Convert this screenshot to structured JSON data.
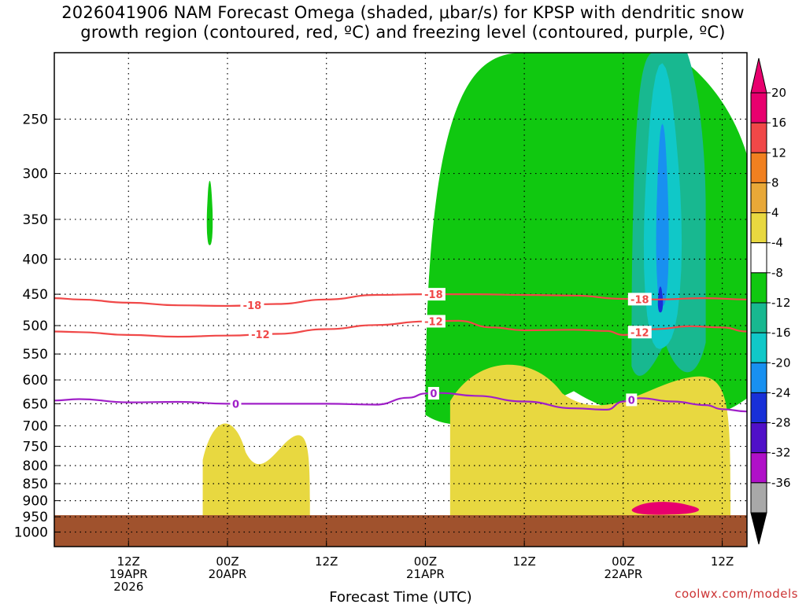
{
  "title": {
    "line1": "2026041906 NAM Forecast Omega (shaded, μbar/s) for KPSP with dendritic snow",
    "line2": "growth region (contoured, red, ºC) and freezing level (contoured, purple, ºC)"
  },
  "credit": "coolwx.com/models",
  "chart_data": {
    "type": "time-pressure cross section",
    "xlabel": "Forecast Time (UTC)",
    "ylabel": "",
    "x_units": "forecast hour",
    "xlim": [
      -3,
      81
    ],
    "ylim_pressure": [
      1050,
      200
    ],
    "y_ticks": [
      250,
      300,
      350,
      400,
      450,
      500,
      550,
      600,
      650,
      700,
      750,
      800,
      850,
      900,
      950,
      1000
    ],
    "x_ticks": [
      {
        "hour": 6,
        "l1": "12Z",
        "l2": "19APR",
        "l3": "2026"
      },
      {
        "hour": 18,
        "l1": "00Z",
        "l2": "20APR",
        "l3": ""
      },
      {
        "hour": 30,
        "l1": "12Z",
        "l2": "",
        "l3": ""
      },
      {
        "hour": 42,
        "l1": "00Z",
        "l2": "21APR",
        "l3": ""
      },
      {
        "hour": 54,
        "l1": "12Z",
        "l2": "",
        "l3": ""
      },
      {
        "hour": 66,
        "l1": "00Z",
        "l2": "22APR",
        "l3": ""
      },
      {
        "hour": 78,
        "l1": "12Z",
        "l2": "",
        "l3": ""
      }
    ],
    "colorbar": {
      "labels": [
        "20",
        "16",
        "12",
        "8",
        "4",
        "-4",
        "-8",
        "-12",
        "-16",
        "-20",
        "-24",
        "-28",
        "-32",
        "-36"
      ],
      "levels": [
        {
          "range": [
            20,
            24
          ],
          "color": "#e8006e"
        },
        {
          "range": [
            16,
            20
          ],
          "color": "#f04848"
        },
        {
          "range": [
            12,
            16
          ],
          "color": "#f08020"
        },
        {
          "range": [
            8,
            12
          ],
          "color": "#e8a838"
        },
        {
          "range": [
            4,
            8
          ],
          "color": "#e8d840"
        },
        {
          "range": [
            -4,
            4
          ],
          "color": "#ffffff"
        },
        {
          "range": [
            -8,
            -4
          ],
          "color": "#10c810"
        },
        {
          "range": [
            -12,
            -8
          ],
          "color": "#18b890"
        },
        {
          "range": [
            -16,
            -12
          ],
          "color": "#10c8c8"
        },
        {
          "range": [
            -20,
            -16
          ],
          "color": "#1890f0"
        },
        {
          "range": [
            -24,
            -20
          ],
          "color": "#1830d8"
        },
        {
          "range": [
            -28,
            -24
          ],
          "color": "#5010c8"
        },
        {
          "range": [
            -32,
            -28
          ],
          "color": "#b010c8"
        },
        {
          "range": [
            -36,
            -32
          ],
          "color": "#a8a8a8"
        }
      ],
      "top_arrow_color": "#e8006e",
      "bottom_arrow_color": "#000000"
    },
    "contours": [
      {
        "label": "-18",
        "color": "#f04848",
        "points": [
          [
            -3,
            456
          ],
          [
            0,
            458
          ],
          [
            6,
            463
          ],
          [
            12,
            467
          ],
          [
            18,
            468
          ],
          [
            24,
            465
          ],
          [
            30,
            458
          ],
          [
            36,
            451
          ],
          [
            42,
            450
          ],
          [
            48,
            450
          ],
          [
            54,
            451
          ],
          [
            60,
            452
          ],
          [
            66,
            457
          ],
          [
            70,
            458
          ],
          [
            76,
            456
          ],
          [
            81,
            458
          ]
        ],
        "label_hours": [
          21,
          43,
          68
        ]
      },
      {
        "label": "-12",
        "color": "#f04848",
        "points": [
          [
            -3,
            510
          ],
          [
            0,
            511
          ],
          [
            6,
            516
          ],
          [
            12,
            519
          ],
          [
            18,
            517
          ],
          [
            24,
            514
          ],
          [
            30,
            506
          ],
          [
            36,
            499
          ],
          [
            42,
            493
          ],
          [
            46,
            492
          ],
          [
            50,
            503
          ],
          [
            54,
            508
          ],
          [
            60,
            507
          ],
          [
            64,
            509
          ],
          [
            66,
            516
          ],
          [
            70,
            506
          ],
          [
            74,
            501
          ],
          [
            78,
            503
          ],
          [
            81,
            510
          ]
        ],
        "label_hours": [
          22,
          43,
          68
        ]
      },
      {
        "label": "0",
        "color": "#a020c8",
        "points": [
          [
            -3,
            643
          ],
          [
            0,
            640
          ],
          [
            6,
            647
          ],
          [
            12,
            646
          ],
          [
            18,
            650
          ],
          [
            24,
            650
          ],
          [
            30,
            650
          ],
          [
            36,
            652
          ],
          [
            40,
            637
          ],
          [
            42,
            628
          ],
          [
            44,
            627
          ],
          [
            48,
            633
          ],
          [
            54,
            645
          ],
          [
            60,
            660
          ],
          [
            64,
            663
          ],
          [
            66,
            645
          ],
          [
            68,
            638
          ],
          [
            72,
            645
          ],
          [
            76,
            653
          ],
          [
            78,
            662
          ],
          [
            81,
            667
          ]
        ],
        "label_hours": [
          19,
          43,
          67
        ]
      }
    ],
    "omega_regions": [
      {
        "value": "-4 to -8",
        "color": "#10c810",
        "hours": [
          15.5,
          16.2
        ],
        "pressure": [
          310,
          385
        ]
      },
      {
        "value": "-4 to -8",
        "color": "#10c810",
        "hours": [
          42,
          82
        ],
        "pressure": [
          200,
          730
        ]
      },
      {
        "value": "-8 to -12",
        "color": "#18b890",
        "hours": [
          67,
          76
        ],
        "pressure": [
          200,
          620
        ]
      },
      {
        "value": "-12 to -16",
        "color": "#10c8c8",
        "hours": [
          68.5,
          73
        ],
        "pressure": [
          215,
          560
        ]
      },
      {
        "value": "-16 to -20",
        "color": "#1890f0",
        "hours": [
          70,
          71.5
        ],
        "pressure": [
          260,
          480
        ]
      },
      {
        "value": "-20 to -24",
        "color": "#1830d8",
        "hours": [
          70.2,
          70.8
        ],
        "pressure": [
          440,
          480
        ]
      },
      {
        "value": "4 to 8",
        "color": "#e8d840",
        "hours": [
          15,
          28
        ],
        "pressure": [
          670,
          950
        ]
      },
      {
        "value": "4 to 8",
        "color": "#e8d840",
        "hours": [
          45,
          79
        ],
        "pressure": [
          550,
          950
        ]
      },
      {
        "value": "20 to 24",
        "color": "#e8006e",
        "hours": [
          67,
          75
        ],
        "pressure": [
          905,
          945
        ]
      }
    ],
    "ground_pressure": 945
  }
}
